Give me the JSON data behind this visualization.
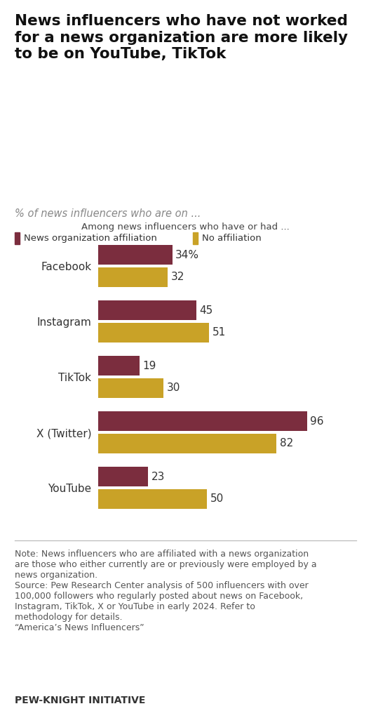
{
  "title": "News influencers who have not worked\nfor a news organization are more likely\nto be on YouTube, TikTok",
  "subtitle": "% of news influencers who are on ...",
  "legend_label": "Among news influencers who have or had ...",
  "legend_items": [
    "News organization affiliation",
    "No affiliation"
  ],
  "categories": [
    "Facebook",
    "Instagram",
    "TikTok",
    "X (Twitter)",
    "YouTube"
  ],
  "affiliation_values": [
    34,
    45,
    19,
    96,
    23
  ],
  "no_affiliation_values": [
    32,
    51,
    30,
    82,
    50
  ],
  "color_affiliation": "#7b2d3e",
  "color_no_affiliation": "#c9a227",
  "bar_height": 0.35,
  "xlim": [
    0,
    105
  ],
  "note_text": "Note: News influencers who are affiliated with a news organization\nare those who either currently are or previously were employed by a\nnews organization.\nSource: Pew Research Center analysis of 500 influencers with over\n100,000 followers who regularly posted about news on Facebook,\nInstagram, TikTok, X or YouTube in early 2024. Refer to\nmethodology for details.\n“America’s News Influencers”",
  "footer_text": "PEW-KNIGHT INITIATIVE",
  "background_color": "#ffffff",
  "title_fontsize": 15.5,
  "subtitle_fontsize": 10.5,
  "legend_label_fontsize": 9.5,
  "legend_item_fontsize": 9.5,
  "tick_fontsize": 11,
  "label_fontsize": 11,
  "note_fontsize": 9,
  "footer_fontsize": 10
}
